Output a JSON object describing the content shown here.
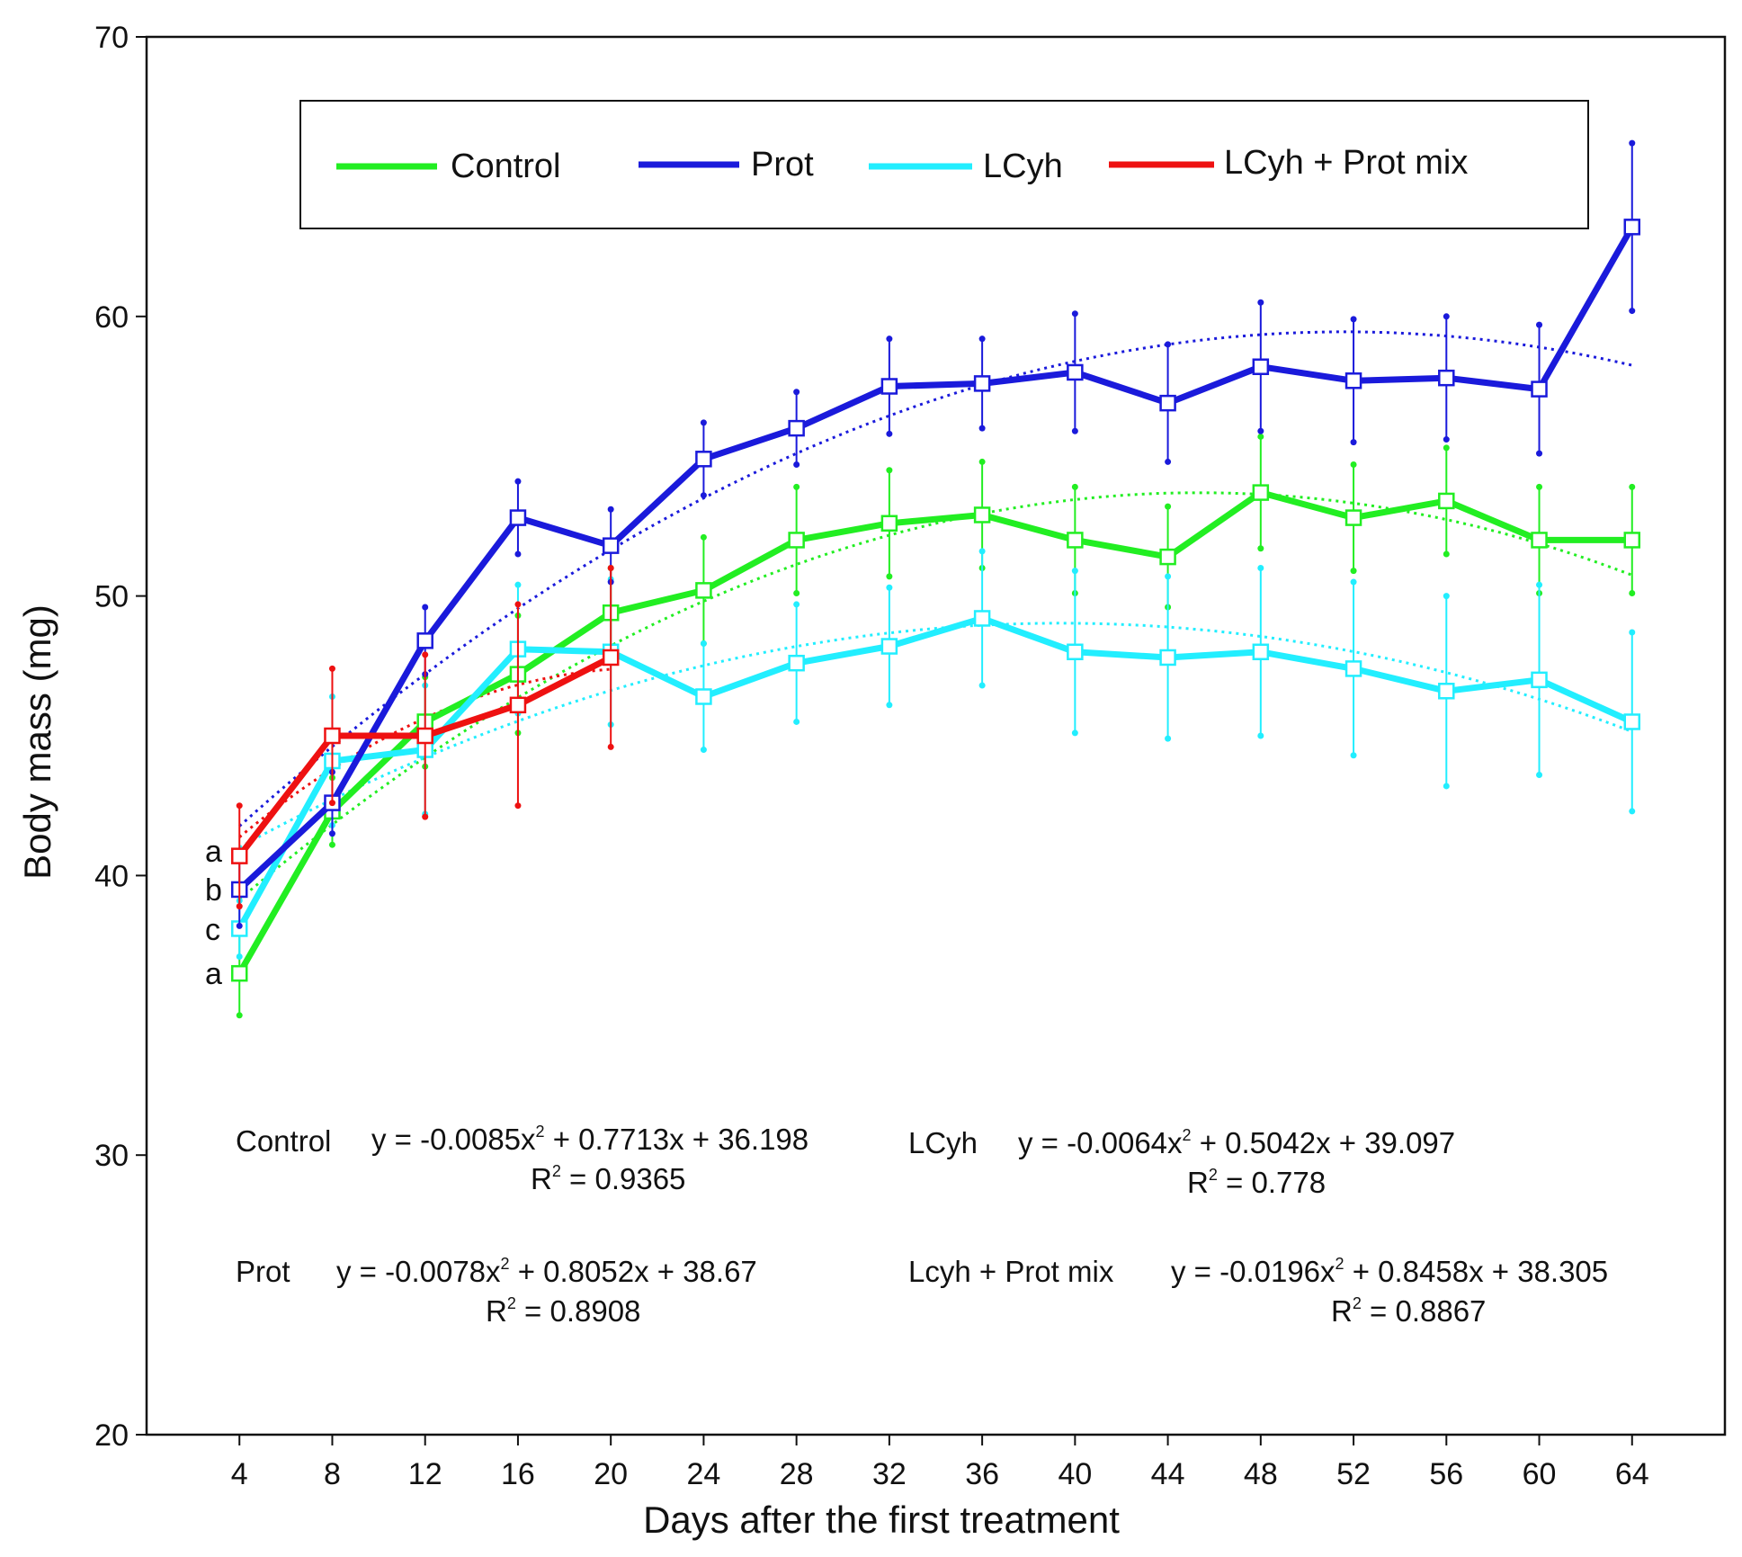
{
  "chart_data": {
    "type": "line",
    "title": "",
    "xlabel": "Days after the first treatment",
    "ylabel": "Body mass (mg)",
    "xlim": [
      0,
      68
    ],
    "ylim": [
      20,
      70
    ],
    "x_ticks": [
      4,
      8,
      12,
      16,
      20,
      24,
      28,
      32,
      36,
      40,
      44,
      48,
      52,
      56,
      60,
      64
    ],
    "y_ticks": [
      20,
      30,
      40,
      50,
      60,
      70
    ],
    "grid": false,
    "legend_position": "top",
    "series": [
      {
        "name": "Control",
        "color": "#22ee22",
        "x": [
          4,
          8,
          12,
          16,
          20,
          24,
          28,
          32,
          36,
          40,
          44,
          48,
          52,
          56,
          60,
          64
        ],
        "values": [
          36.5,
          42.3,
          45.5,
          47.2,
          49.4,
          50.2,
          52.0,
          52.6,
          52.9,
          52.0,
          51.4,
          53.7,
          52.8,
          53.4,
          52.0,
          52.0
        ],
        "errors": [
          1.5,
          1.2,
          1.6,
          2.1,
          1.6,
          1.9,
          1.9,
          1.9,
          1.9,
          1.9,
          1.8,
          2.0,
          1.9,
          1.9,
          1.9,
          1.9
        ],
        "fit": {
          "a": -0.0085,
          "b": 0.7713,
          "c": 36.198
        },
        "equation": "y = -0.0085x",
        "equation_tail": " + 0.7713x + 36.198",
        "r2_prefix": "R",
        "r2_value": " = 0.9365",
        "label": "Control"
      },
      {
        "name": "Prot",
        "color": "#1a1adb",
        "x": [
          4,
          8,
          12,
          16,
          20,
          24,
          28,
          32,
          36,
          40,
          44,
          48,
          52,
          56,
          60,
          64
        ],
        "values": [
          39.5,
          42.6,
          48.4,
          52.8,
          51.8,
          54.9,
          56.0,
          57.5,
          57.6,
          58.0,
          56.9,
          58.2,
          57.7,
          57.8,
          57.4,
          63.2
        ],
        "errors": [
          1.3,
          1.1,
          1.2,
          1.3,
          1.3,
          1.3,
          1.3,
          1.7,
          1.6,
          2.1,
          2.1,
          2.3,
          2.2,
          2.2,
          2.3,
          3.0
        ],
        "fit": {
          "a": -0.0078,
          "b": 0.8052,
          "c": 38.67
        },
        "equation": "y = -0.0078x",
        "equation_tail": " + 0.8052x + 38.67",
        "r2_prefix": "R",
        "r2_value": " = 0.8908",
        "label": "Prot"
      },
      {
        "name": "LCyh",
        "color": "#22eeff",
        "x": [
          4,
          8,
          12,
          16,
          20,
          24,
          28,
          32,
          36,
          40,
          44,
          48,
          52,
          56,
          60,
          64
        ],
        "values": [
          38.1,
          44.1,
          44.5,
          48.1,
          48.0,
          46.4,
          47.6,
          48.2,
          49.2,
          48.0,
          47.8,
          48.0,
          47.4,
          46.6,
          47.0,
          45.5
        ],
        "errors": [
          1.0,
          2.3,
          2.3,
          2.3,
          2.6,
          1.9,
          2.1,
          2.1,
          2.4,
          2.9,
          2.9,
          3.0,
          3.1,
          3.4,
          3.4,
          3.2
        ],
        "fit": {
          "a": -0.0064,
          "b": 0.5042,
          "c": 39.097
        },
        "equation": "y = -0.0064x",
        "equation_tail": " + 0.5042x + 39.097",
        "r2_prefix": "R",
        "r2_value": " = 0.778",
        "label": "LCyh"
      },
      {
        "name": "LCyh + Prot mix",
        "color": "#ee1111",
        "x": [
          4,
          8,
          12,
          16,
          20
        ],
        "values": [
          40.7,
          45.0,
          45.0,
          46.1,
          47.8
        ],
        "errors": [
          1.8,
          2.4,
          2.9,
          3.6,
          3.2
        ],
        "fit": {
          "a": -0.0196,
          "b": 0.8458,
          "c": 38.305
        },
        "equation": "y = -0.0196x",
        "equation_tail": " + 0.8458x + 38.305",
        "r2_prefix": "R",
        "r2_value": " = 0.8867",
        "label": "Lcyh + Prot mix"
      }
    ],
    "significance_letters": [
      "a",
      "b",
      "c",
      "a"
    ]
  }
}
